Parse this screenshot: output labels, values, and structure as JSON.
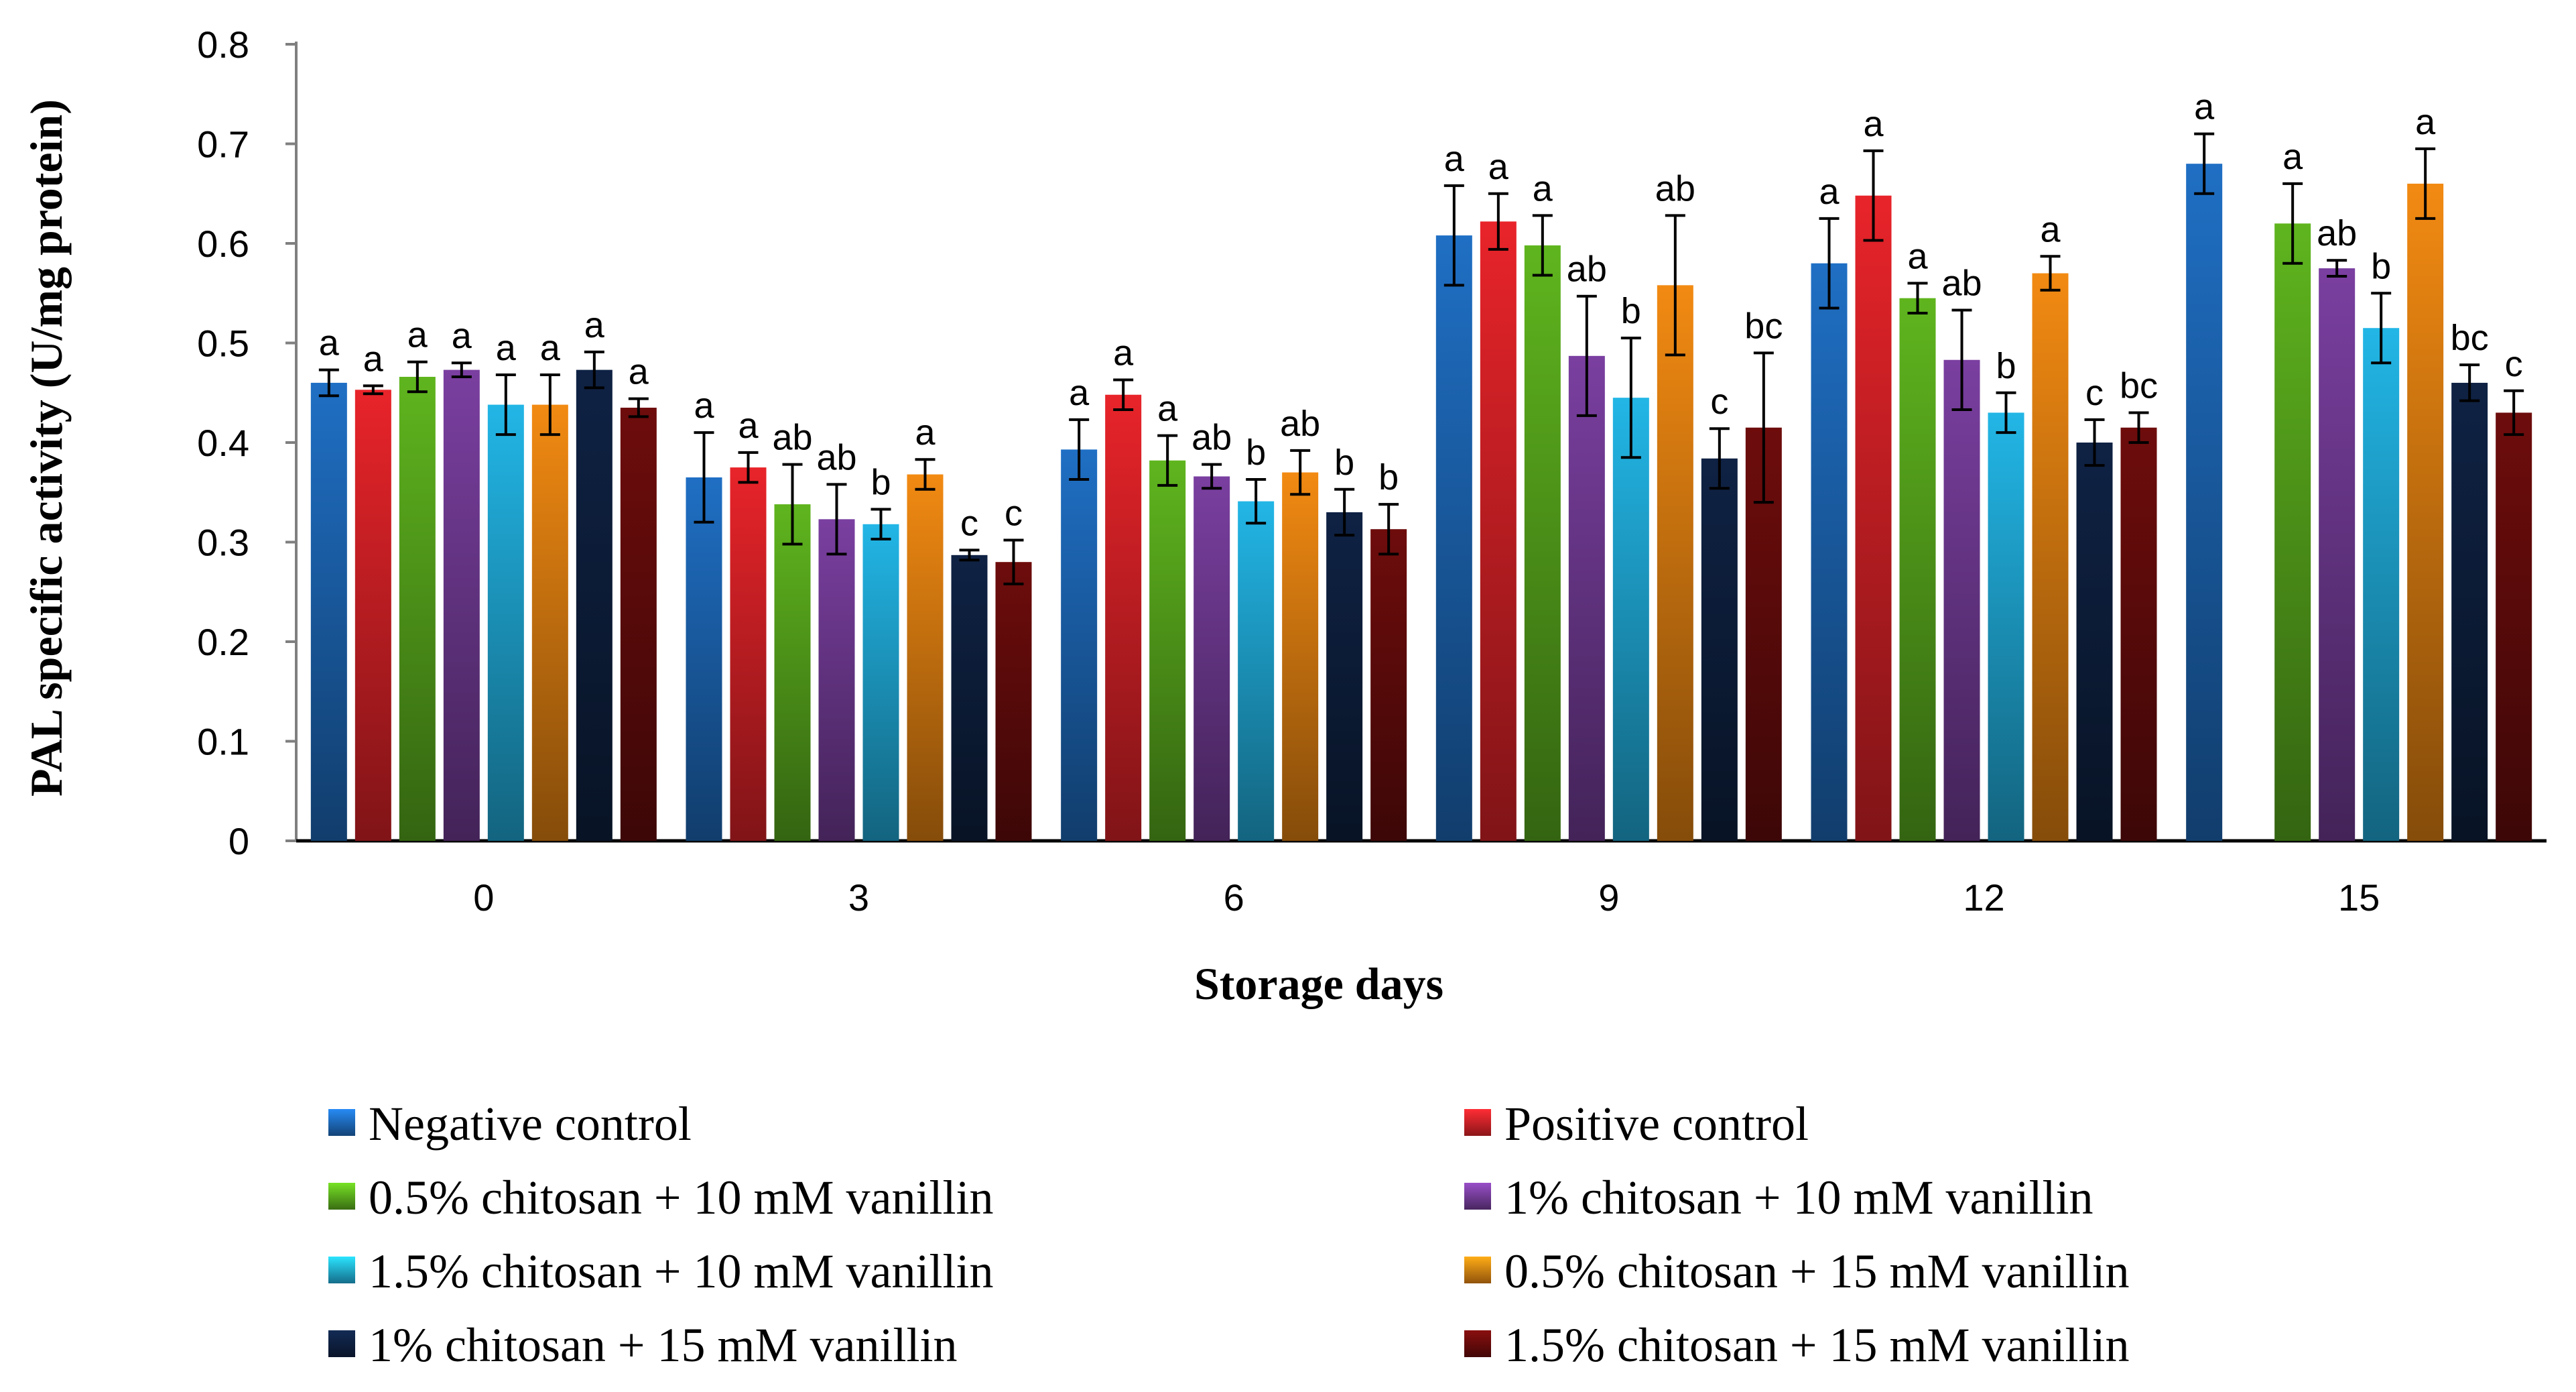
{
  "chart_data": {
    "type": "bar",
    "title": "",
    "xlabel": "Storage days",
    "ylabel": "PAL specific activity (U/mg protein)",
    "ylim": [
      0,
      0.8
    ],
    "yticks": [
      "0",
      "0.1",
      "0.2",
      "0.3",
      "0.4",
      "0.5",
      "0.6",
      "0.7",
      "0.8"
    ],
    "grid": false,
    "legend_position": "bottom",
    "categories": [
      "0",
      "3",
      "6",
      "9",
      "12",
      "15"
    ],
    "series": [
      {
        "name": "Negative control",
        "color": "#1f6fc4",
        "values": [
          0.46,
          0.365,
          0.393,
          0.608,
          0.58,
          0.68
        ],
        "errors": [
          0.013,
          0.045,
          0.03,
          0.05,
          0.045,
          0.03
        ],
        "letters": [
          "a",
          "a",
          "a",
          "a",
          "a",
          "a"
        ]
      },
      {
        "name": "Positive control",
        "color": "#e8242a",
        "values": [
          0.453,
          0.375,
          0.448,
          0.622,
          0.648,
          null
        ],
        "errors": [
          0.004,
          0.015,
          0.015,
          0.028,
          0.045,
          null
        ],
        "letters": [
          "a",
          "a",
          "a",
          "a",
          "a",
          ""
        ]
      },
      {
        "name": "0.5% chitosan + 10 mM vanillin",
        "color": "#5fb51e",
        "values": [
          0.466,
          0.338,
          0.382,
          0.598,
          0.545,
          0.62
        ],
        "errors": [
          0.015,
          0.04,
          0.025,
          0.03,
          0.015,
          0.04
        ],
        "letters": [
          "a",
          "ab",
          "a",
          "a",
          "a",
          "a"
        ]
      },
      {
        "name": "1% chitosan + 10 mM vanillin",
        "color": "#7a3fa0",
        "values": [
          0.473,
          0.323,
          0.366,
          0.487,
          0.483,
          0.575
        ],
        "errors": [
          0.007,
          0.035,
          0.012,
          0.06,
          0.05,
          0.008
        ],
        "letters": [
          "a",
          "ab",
          "ab",
          "ab",
          "ab",
          "ab"
        ]
      },
      {
        "name": "1.5% chitosan + 10 mM vanillin",
        "color": "#22b6e6",
        "values": [
          0.438,
          0.318,
          0.341,
          0.445,
          0.43,
          0.515
        ],
        "errors": [
          0.03,
          0.015,
          0.022,
          0.06,
          0.02,
          0.035
        ],
        "letters": [
          "a",
          "b",
          "b",
          "b",
          "b",
          "b"
        ]
      },
      {
        "name": "0.5% chitosan + 15 mM vanillin",
        "color": "#f28a12",
        "values": [
          0.438,
          0.368,
          0.37,
          0.558,
          0.57,
          0.66
        ],
        "errors": [
          0.03,
          0.015,
          0.022,
          0.07,
          0.017,
          0.035
        ],
        "letters": [
          "a",
          "a",
          "ab",
          "ab",
          "a",
          "a"
        ]
      },
      {
        "name": "1% chitosan + 15 mM vanillin",
        "color": "#0f2244",
        "values": [
          0.473,
          0.287,
          0.33,
          0.384,
          0.4,
          0.46
        ],
        "errors": [
          0.018,
          0.005,
          0.023,
          0.03,
          0.023,
          0.018
        ],
        "letters": [
          "a",
          "c",
          "b",
          "c",
          "c",
          "bc"
        ]
      },
      {
        "name": "1.5% chitosan + 15 mM vanillin",
        "color": "#6e0c0c",
        "values": [
          0.435,
          0.28,
          0.313,
          0.415,
          0.415,
          0.43
        ],
        "errors": [
          0.009,
          0.022,
          0.025,
          0.075,
          0.015,
          0.022
        ],
        "letters": [
          "a",
          "c",
          "b",
          "bc",
          "bc",
          "c"
        ]
      }
    ]
  }
}
